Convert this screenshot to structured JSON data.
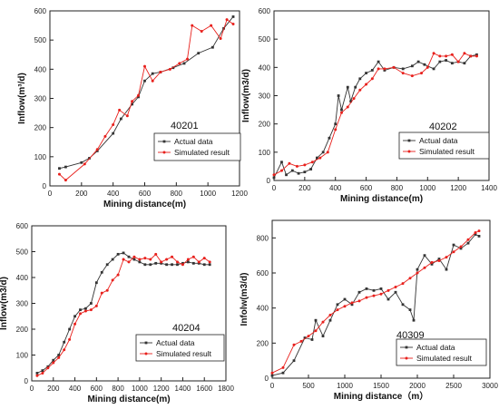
{
  "chart_data": [
    {
      "type": "line",
      "panel_label": "40201",
      "xlabel": "Mining distance(m)",
      "ylabel": "Inflow(m³/d)",
      "xlim": [
        0,
        1200
      ],
      "ylim": [
        0,
        600
      ],
      "xticks": [
        0,
        200,
        400,
        600,
        800,
        1000,
        1200
      ],
      "yticks": [
        0,
        100,
        200,
        300,
        400,
        500,
        600
      ],
      "legend_position": "center-right",
      "series": [
        {
          "name": "Actual data",
          "color": "#333333",
          "marker": "square",
          "x": [
            60,
            100,
            200,
            250,
            300,
            400,
            450,
            520,
            560,
            600,
            650,
            700,
            780,
            850,
            940,
            1030,
            1100,
            1160
          ],
          "y": [
            60,
            65,
            80,
            95,
            120,
            180,
            230,
            280,
            305,
            360,
            385,
            390,
            405,
            420,
            455,
            475,
            540,
            580
          ]
        },
        {
          "name": "Simulated result",
          "color": "#e8201c",
          "marker": "circle",
          "x": [
            60,
            100,
            220,
            300,
            350,
            400,
            440,
            490,
            520,
            560,
            600,
            650,
            700,
            760,
            820,
            870,
            900,
            960,
            1020,
            1080,
            1120,
            1160
          ],
          "y": [
            40,
            20,
            75,
            125,
            170,
            210,
            260,
            240,
            290,
            310,
            410,
            360,
            390,
            400,
            420,
            435,
            550,
            530,
            550,
            505,
            570,
            555
          ]
        }
      ]
    },
    {
      "type": "line",
      "panel_label": "40202",
      "xlabel": "Mining distance(m)",
      "ylabel": "Inflow(m3/d)",
      "xlim": [
        0,
        1400
      ],
      "ylim": [
        0,
        600
      ],
      "xticks": [
        0,
        200,
        400,
        600,
        800,
        1000,
        1200,
        1400
      ],
      "yticks": [
        0,
        100,
        200,
        300,
        400,
        500,
        600
      ],
      "legend_position": "lower-right",
      "series": [
        {
          "name": "Actual data",
          "color": "#333333",
          "marker": "square",
          "x": [
            0,
            50,
            80,
            120,
            160,
            200,
            240,
            280,
            320,
            360,
            400,
            420,
            440,
            480,
            500,
            530,
            560,
            600,
            640,
            680,
            720,
            780,
            840,
            900,
            940,
            980,
            1040,
            1080,
            1120,
            1160,
            1200,
            1240,
            1280,
            1320
          ],
          "y": [
            10,
            65,
            20,
            35,
            25,
            30,
            40,
            80,
            100,
            150,
            200,
            300,
            250,
            330,
            280,
            330,
            360,
            380,
            390,
            420,
            390,
            400,
            395,
            405,
            420,
            410,
            395,
            420,
            425,
            415,
            420,
            415,
            440,
            445
          ]
        },
        {
          "name": "Simulated result",
          "color": "#e8201c",
          "marker": "circle",
          "x": [
            0,
            50,
            100,
            150,
            200,
            250,
            300,
            350,
            400,
            440,
            480,
            520,
            560,
            600,
            640,
            680,
            720,
            780,
            840,
            900,
            960,
            1000,
            1040,
            1080,
            1120,
            1160,
            1200,
            1240,
            1280,
            1320
          ],
          "y": [
            20,
            35,
            60,
            50,
            55,
            65,
            80,
            100,
            180,
            240,
            260,
            290,
            320,
            340,
            360,
            395,
            395,
            400,
            380,
            370,
            380,
            400,
            450,
            440,
            440,
            445,
            420,
            450,
            440,
            440
          ]
        }
      ]
    },
    {
      "type": "line",
      "panel_label": "40204",
      "xlabel": "Mining distance(m)",
      "ylabel": "Inflow(m3/d)",
      "xlim": [
        0,
        1800
      ],
      "ylim": [
        0,
        600
      ],
      "xticks": [
        0,
        200,
        400,
        600,
        800,
        1000,
        1200,
        1400,
        1600,
        1800
      ],
      "yticks": [
        0,
        100,
        200,
        300,
        400,
        500,
        600
      ],
      "legend_position": "lower-right",
      "series": [
        {
          "name": "Actual data",
          "color": "#333333",
          "marker": "square",
          "x": [
            50,
            100,
            150,
            200,
            250,
            300,
            350,
            400,
            450,
            500,
            550,
            600,
            650,
            700,
            750,
            800,
            850,
            900,
            950,
            1000,
            1050,
            1100,
            1150,
            1200,
            1250,
            1300,
            1350,
            1400,
            1450,
            1500,
            1550,
            1600,
            1650
          ],
          "y": [
            30,
            40,
            55,
            80,
            100,
            150,
            200,
            250,
            275,
            280,
            300,
            380,
            420,
            450,
            470,
            490,
            495,
            480,
            470,
            460,
            450,
            450,
            455,
            455,
            450,
            450,
            450,
            455,
            460,
            455,
            455,
            450,
            450
          ]
        },
        {
          "name": "Simulated result",
          "color": "#e8201c",
          "marker": "circle",
          "x": [
            50,
            100,
            150,
            200,
            250,
            300,
            350,
            400,
            450,
            500,
            550,
            600,
            650,
            700,
            750,
            800,
            850,
            900,
            950,
            1000,
            1050,
            1100,
            1150,
            1200,
            1250,
            1300,
            1350,
            1400,
            1450,
            1500,
            1550,
            1600,
            1650
          ],
          "y": [
            20,
            30,
            50,
            70,
            90,
            120,
            160,
            220,
            260,
            270,
            275,
            290,
            340,
            350,
            390,
            410,
            470,
            460,
            480,
            470,
            475,
            470,
            490,
            460,
            470,
            480,
            460,
            450,
            470,
            480,
            460,
            475,
            460
          ]
        }
      ]
    },
    {
      "type": "line",
      "panel_label": "40309",
      "xlabel": "Mining distance（m）",
      "ylabel": "Infolw(m3/d)",
      "xlim": [
        0,
        3000
      ],
      "ylim": [
        0,
        900
      ],
      "xticks": [
        0,
        500,
        1000,
        1500,
        2000,
        2500,
        3000
      ],
      "yticks": [
        0,
        200,
        400,
        600,
        800
      ],
      "legend_position": "lower-right",
      "series": [
        {
          "name": "Actual data",
          "color": "#333333",
          "marker": "square",
          "x": [
            0,
            150,
            300,
            450,
            550,
            600,
            700,
            800,
            900,
            1000,
            1100,
            1200,
            1300,
            1400,
            1500,
            1600,
            1700,
            1800,
            1900,
            1950,
            2000,
            2100,
            2200,
            2300,
            2400,
            2500,
            2600,
            2700,
            2800,
            2850
          ],
          "y": [
            15,
            30,
            100,
            230,
            220,
            330,
            240,
            330,
            420,
            450,
            420,
            490,
            510,
            500,
            510,
            450,
            490,
            420,
            390,
            330,
            620,
            700,
            650,
            680,
            620,
            760,
            740,
            770,
            820,
            810
          ]
        },
        {
          "name": "Simulated result",
          "color": "#e8201c",
          "marker": "circle",
          "x": [
            0,
            150,
            300,
            400,
            500,
            600,
            700,
            800,
            900,
            1000,
            1100,
            1200,
            1300,
            1400,
            1500,
            1600,
            1700,
            1800,
            1900,
            2000,
            2100,
            2200,
            2300,
            2400,
            2500,
            2600,
            2700,
            2800,
            2850
          ],
          "y": [
            30,
            60,
            190,
            210,
            240,
            270,
            320,
            360,
            390,
            410,
            430,
            440,
            460,
            470,
            480,
            500,
            520,
            540,
            570,
            600,
            630,
            660,
            670,
            690,
            720,
            750,
            790,
            830,
            840
          ]
        }
      ]
    }
  ]
}
